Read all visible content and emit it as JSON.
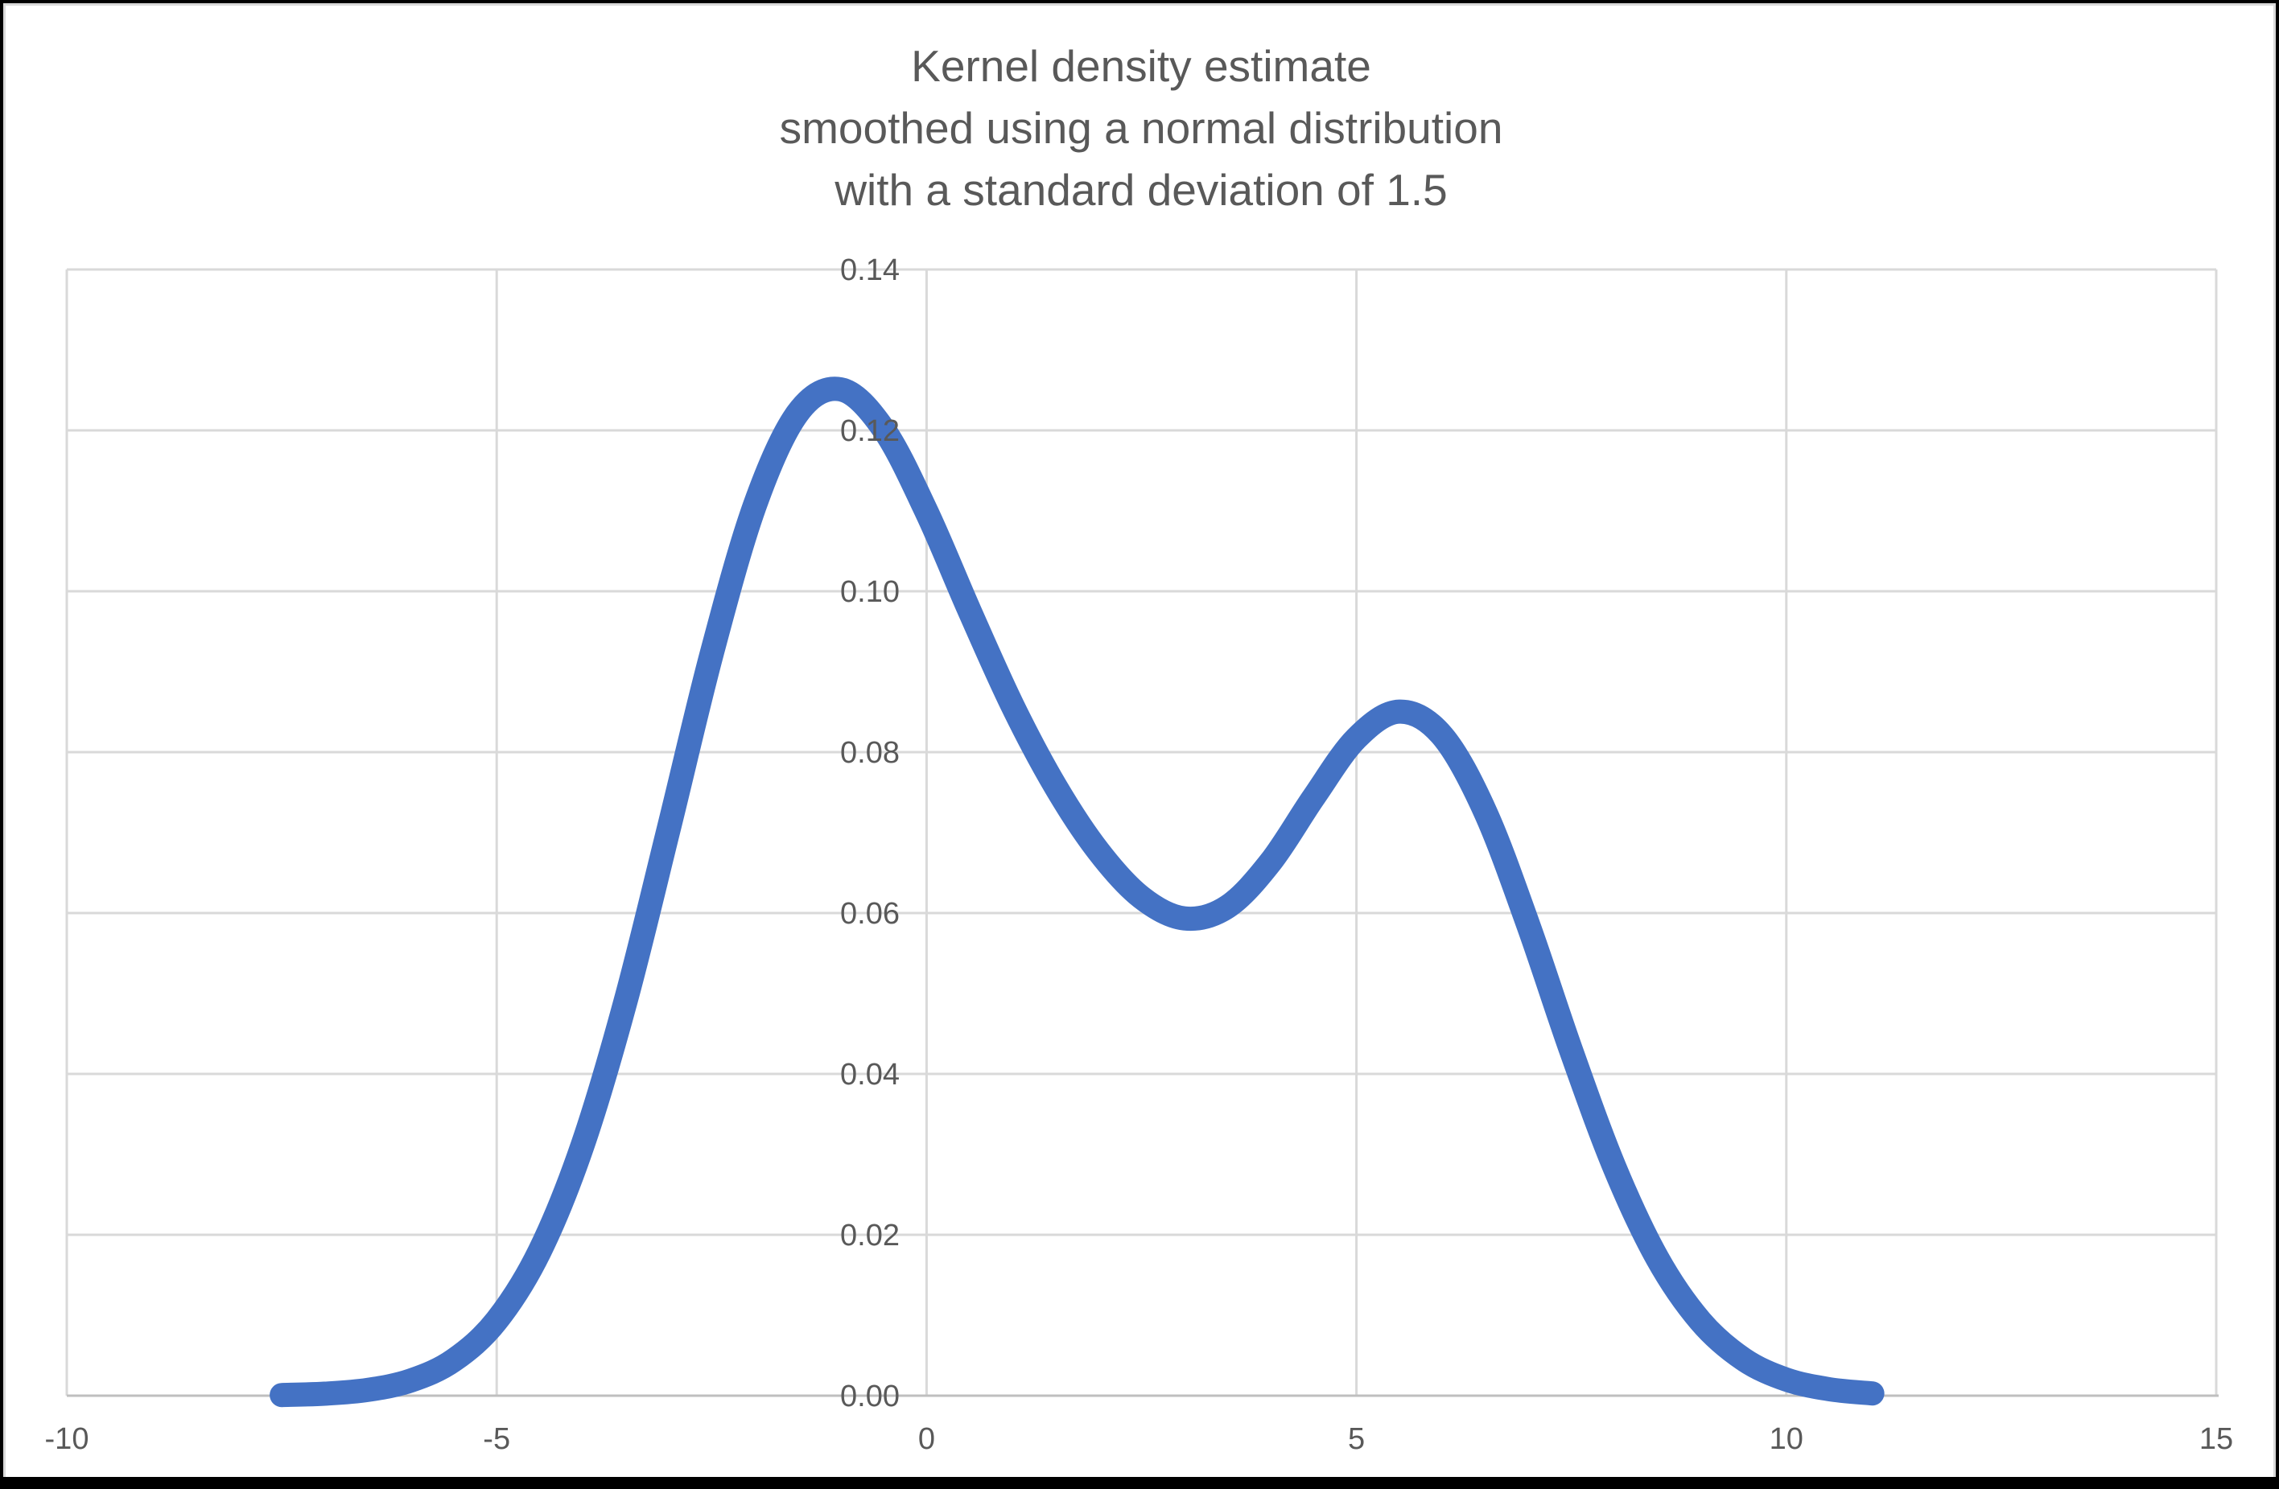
{
  "chart_data": {
    "type": "line",
    "title_lines": [
      "Kernel density estimate",
      "smoothed using a normal distribution",
      "with a standard deviation of 1.5"
    ],
    "xlim": [
      -10,
      15
    ],
    "ylim": [
      0,
      0.14
    ],
    "grid": true,
    "legend": "none",
    "x_ticks": [
      {
        "value": -10,
        "label": "-10"
      },
      {
        "value": -5,
        "label": "-5"
      },
      {
        "value": 0,
        "label": "0"
      },
      {
        "value": 5,
        "label": "5"
      },
      {
        "value": 10,
        "label": "10"
      },
      {
        "value": 15,
        "label": "15"
      }
    ],
    "y_ticks": [
      {
        "value": 0.0,
        "label": "0.00"
      },
      {
        "value": 0.02,
        "label": "0.02"
      },
      {
        "value": 0.04,
        "label": "0.04"
      },
      {
        "value": 0.06,
        "label": "0.06"
      },
      {
        "value": 0.08,
        "label": "0.08"
      },
      {
        "value": 0.1,
        "label": "0.10"
      },
      {
        "value": 0.12,
        "label": "0.12"
      },
      {
        "value": 0.14,
        "label": "0.14"
      }
    ],
    "series": [
      {
        "name": "Kernel density estimate (normal kernel, sd = 1.5)",
        "color": "#4472C4",
        "stroke_width": 30,
        "points": [
          [
            -7.5,
            8e-05
          ],
          [
            -7.0,
            0.00025
          ],
          [
            -6.5,
            0.00072
          ],
          [
            -6.0,
            0.00188
          ],
          [
            -5.5,
            0.00441
          ],
          [
            -5.0,
            0.00935
          ],
          [
            -4.5,
            0.01795
          ],
          [
            -4.0,
            0.03115
          ],
          [
            -3.5,
            0.04909
          ],
          [
            -3.0,
            0.07043
          ],
          [
            -2.5,
            0.0922
          ],
          [
            -2.0,
            0.11059
          ],
          [
            -1.5,
            0.12213
          ],
          [
            -1.0,
            0.1251
          ],
          [
            -0.5,
            0.12015
          ],
          [
            0.0,
            0.10988
          ],
          [
            0.5,
            0.09757
          ],
          [
            1.0,
            0.08578
          ],
          [
            1.5,
            0.07572
          ],
          [
            2.0,
            0.06767
          ],
          [
            2.5,
            0.06193
          ],
          [
            3.0,
            0.05933
          ],
          [
            3.5,
            0.06078
          ],
          [
            4.0,
            0.06633
          ],
          [
            4.5,
            0.07435
          ],
          [
            5.0,
            0.08173
          ],
          [
            5.5,
            0.08504
          ],
          [
            6.0,
            0.08202
          ],
          [
            6.5,
            0.07252
          ],
          [
            7.0,
            0.05846
          ],
          [
            7.5,
            0.04281
          ],
          [
            8.0,
            0.02843
          ],
          [
            8.5,
            0.01708
          ],
          [
            9.0,
            0.00927
          ],
          [
            9.5,
            0.00454
          ],
          [
            10.0,
            0.002
          ],
          [
            10.5,
            0.0008
          ],
          [
            11.0,
            0.00028
          ]
        ]
      }
    ]
  },
  "styles": {
    "title_color": "#595959",
    "tick_label_color": "#595959",
    "gridline_color": "#D9D9D9",
    "axis_line_color": "#BFBFBF",
    "plot_background": "#FFFFFF",
    "frame_color": "#000000"
  }
}
